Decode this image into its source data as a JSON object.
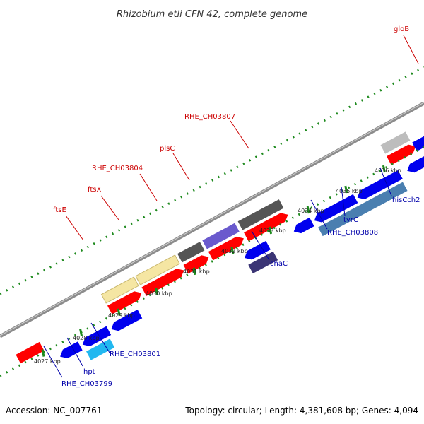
{
  "title": "Rhizobium etli CFN 42, complete genome",
  "footer": {
    "accession": "Accession: NC_007761",
    "summary": "Topology: circular; Length: 4,381,608 bp; Genes: 4,094"
  },
  "colors": {
    "backbone": "#8c8c8c",
    "dotted_track": "#1e8a1e",
    "label_forward": "#cc0000",
    "label_reverse": "#0000aa",
    "gene_red": "#ff0000",
    "gene_blue": "#0000ee",
    "gene_gray": "#555555",
    "gene_light_gray": "#bdbdbd",
    "gene_yellow": "#f5e6a3",
    "gene_purple": "#6a5acd",
    "gene_dark_purple": "#3b3575",
    "gene_steel_blue": "#4a7fb0",
    "gene_cyan": "#22b8f0"
  },
  "ticks": [
    "4027 kbp",
    "4028 kbp",
    "4029 kbp",
    "4030 kbp",
    "4031 kbp",
    "4032 kbp",
    "4033 kbp",
    "4034 kbp",
    "4035 kbp",
    "4036 kbp"
  ],
  "forward_labels": [
    "ftsE",
    "ftsX",
    "RHE_CH03804",
    "plsC",
    "RHE_CH03807",
    "gloB"
  ],
  "reverse_labels": [
    "RHE_CH03799",
    "hpt",
    "RHE_CH03801",
    "chaC",
    "RHE_CH03808",
    "tyrC",
    "hisCch2"
  ]
}
